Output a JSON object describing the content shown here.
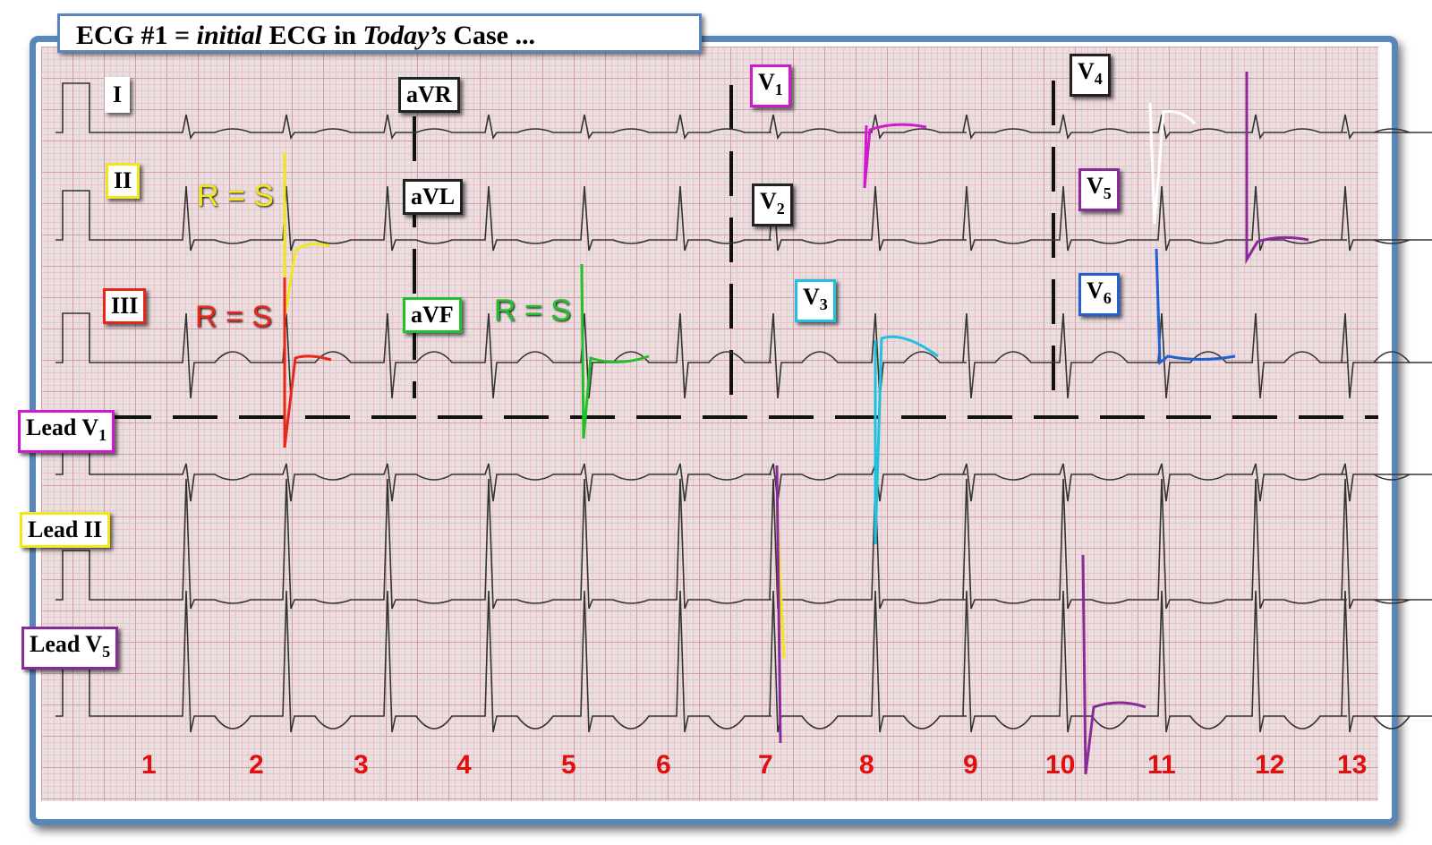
{
  "title": {
    "parts": [
      {
        "text": "ECG #1 = "
      },
      {
        "text": "initial",
        "italic": true
      },
      {
        "text": " ECG in "
      },
      {
        "text": "Today’s",
        "italic": true
      },
      {
        "text": " Case ..."
      }
    ]
  },
  "leads": [
    {
      "main": "I"
    },
    {
      "main": "II"
    },
    {
      "main": "III"
    },
    {
      "main": "aVR"
    },
    {
      "main": "aVL"
    },
    {
      "main": "aVF"
    },
    {
      "main": "V",
      "sub": "1"
    },
    {
      "main": "V",
      "sub": "2"
    },
    {
      "main": "V",
      "sub": "3"
    },
    {
      "main": "V",
      "sub": "4"
    },
    {
      "main": "V",
      "sub": "5"
    },
    {
      "main": "V",
      "sub": "6"
    }
  ],
  "rhythm_leads": [
    {
      "main": "Lead V",
      "sub": "1"
    },
    {
      "main": "Lead II"
    },
    {
      "main": "Lead V",
      "sub": "5"
    }
  ],
  "annotations": [
    "R = S",
    "R = S",
    "R = S"
  ],
  "beat_numbers": [
    "1",
    "2",
    "3",
    "4",
    "5",
    "6",
    "7",
    "8",
    "9",
    "10",
    "11",
    "12",
    "13"
  ]
}
